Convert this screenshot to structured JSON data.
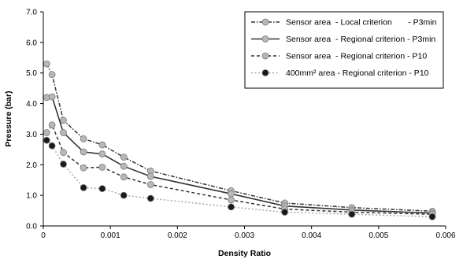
{
  "chart_data": {
    "type": "line",
    "xlabel": "Density Ratio",
    "ylabel": "Pressure (bar)",
    "xlim": [
      0,
      0.006
    ],
    "ylim": [
      0,
      7.0
    ],
    "x_ticks": [
      "0",
      "0.001",
      "0.002",
      "0.003",
      "0.004",
      "0.005",
      "0.006"
    ],
    "y_ticks": [
      "0.0",
      "1.0",
      "2.0",
      "3.0",
      "4.0",
      "5.0",
      "6.0",
      "7.0"
    ],
    "grid": false,
    "legend_position": "top-right",
    "series": [
      {
        "name": "Sensor area  - Local criterion       - P3min",
        "line_style": "dash-dot",
        "line_color": "#333333",
        "marker": "circle",
        "marker_fill": "#b8b8b8",
        "points": [
          [
            5e-05,
            5.3
          ],
          [
            0.00013,
            4.95
          ],
          [
            0.0003,
            3.45
          ],
          [
            0.0006,
            2.85
          ],
          [
            0.00088,
            2.65
          ],
          [
            0.0012,
            2.25
          ],
          [
            0.0016,
            1.8
          ],
          [
            0.0028,
            1.15
          ],
          [
            0.0036,
            0.75
          ],
          [
            0.0046,
            0.6
          ],
          [
            0.0058,
            0.48
          ]
        ]
      },
      {
        "name": "Sensor area  - Regional criterion - P3min",
        "line_style": "solid",
        "line_color": "#333333",
        "marker": "circle",
        "marker_fill": "#b8b8b8",
        "points": [
          [
            5e-05,
            4.2
          ],
          [
            0.00013,
            4.22
          ],
          [
            0.0003,
            3.05
          ],
          [
            0.0006,
            2.42
          ],
          [
            0.00088,
            2.35
          ],
          [
            0.0012,
            1.95
          ],
          [
            0.0016,
            1.62
          ],
          [
            0.0028,
            1.05
          ],
          [
            0.0036,
            0.65
          ],
          [
            0.0046,
            0.52
          ],
          [
            0.0058,
            0.42
          ]
        ]
      },
      {
        "name": "Sensor area  - Regional criterion - P10",
        "line_style": "dashed",
        "line_color": "#333333",
        "marker": "circle",
        "marker_fill": "#b8b8b8",
        "points": [
          [
            5e-05,
            3.05
          ],
          [
            0.00013,
            3.3
          ],
          [
            0.0003,
            2.4
          ],
          [
            0.0006,
            1.9
          ],
          [
            0.00088,
            1.92
          ],
          [
            0.0012,
            1.6
          ],
          [
            0.0016,
            1.35
          ],
          [
            0.0028,
            0.85
          ],
          [
            0.0036,
            0.55
          ],
          [
            0.0046,
            0.45
          ],
          [
            0.0058,
            0.38
          ]
        ]
      },
      {
        "name": "400mm² area - Regional criterion - P10",
        "line_style": "dotted",
        "line_color": "#aaaaaa",
        "marker": "circle",
        "marker_fill": "#1a1a1a",
        "points": [
          [
            5e-05,
            2.8
          ],
          [
            0.00013,
            2.62
          ],
          [
            0.0003,
            2.02
          ],
          [
            0.0006,
            1.25
          ],
          [
            0.00088,
            1.22
          ],
          [
            0.0012,
            1.0
          ],
          [
            0.0016,
            0.9
          ],
          [
            0.0028,
            0.62
          ],
          [
            0.0036,
            0.45
          ],
          [
            0.0046,
            0.38
          ],
          [
            0.0058,
            0.3
          ]
        ]
      }
    ]
  }
}
